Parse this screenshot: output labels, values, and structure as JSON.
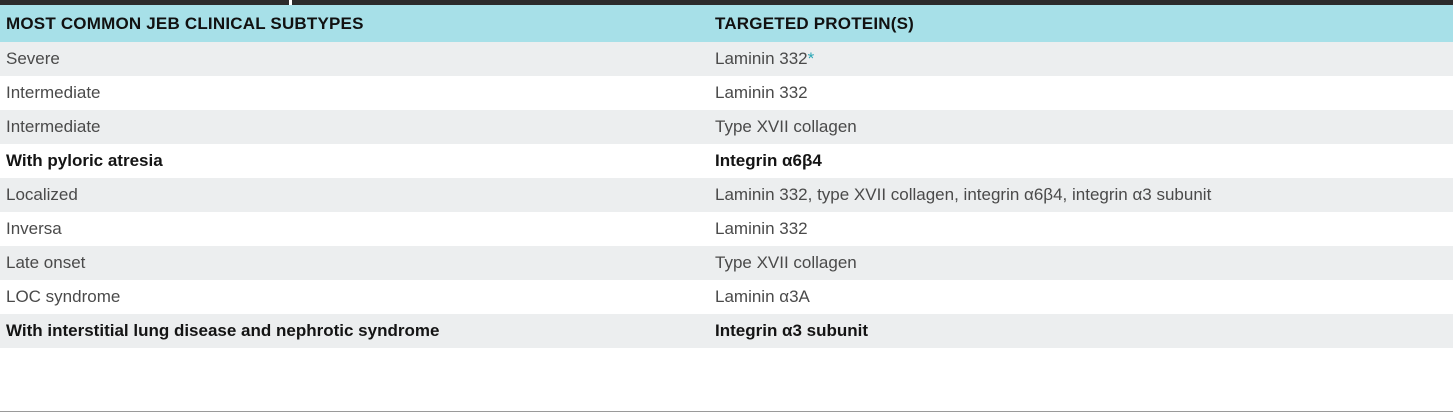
{
  "header": {
    "col1": "MOST COMMON JEB CLINICAL SUBTYPES",
    "col2": "TARGETED PROTEIN(S)"
  },
  "rows": [
    {
      "subtype": "Severe",
      "protein": "Laminin 332",
      "footnote": "*",
      "bold": false
    },
    {
      "subtype": "Intermediate",
      "protein": "Laminin 332",
      "footnote": "",
      "bold": false
    },
    {
      "subtype": "Intermediate",
      "protein": "Type XVII collagen",
      "footnote": "",
      "bold": false
    },
    {
      "subtype": "With pyloric atresia",
      "protein": "Integrin α6β4",
      "footnote": "",
      "bold": true
    },
    {
      "subtype": "Localized",
      "protein": "Laminin 332, type XVII collagen, integrin α6β4, integrin α3 subunit",
      "footnote": "",
      "bold": false
    },
    {
      "subtype": "Inversa",
      "protein": "Laminin 332",
      "footnote": "",
      "bold": false
    },
    {
      "subtype": "Late onset",
      "protein": "Type XVII collagen",
      "footnote": "",
      "bold": false
    },
    {
      "subtype": "LOC syndrome",
      "protein": "Laminin α3A",
      "footnote": "",
      "bold": false
    },
    {
      "subtype": "With interstitial lung disease and nephrotic syndrome",
      "protein": "Integrin α3 subunit",
      "footnote": "",
      "bold": true
    }
  ],
  "colors": {
    "header_bg": "#a7e0e8",
    "alt_row_bg": "#eceeef",
    "footnote_accent": "#2aa6b5"
  }
}
